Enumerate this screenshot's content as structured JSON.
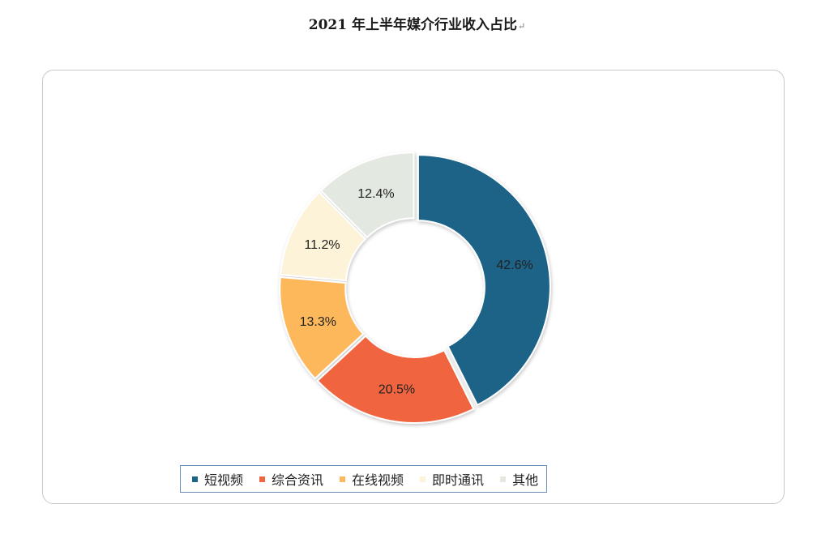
{
  "title": "2021 年上半年媒介行业收入占比",
  "title_mark": "↵",
  "chart_data": {
    "type": "pie",
    "donut": true,
    "title": "2021 年上半年媒介行业收入占比",
    "categories": [
      "短视频",
      "综合资讯",
      "在线视频",
      "即时通讯",
      "其他"
    ],
    "values": [
      42.6,
      20.5,
      13.3,
      11.2,
      12.4
    ],
    "labels": [
      "42.6%",
      "20.5%",
      "13.3%",
      "11.2%",
      "12.4%"
    ],
    "colors": [
      "#1b6387",
      "#f0653f",
      "#feb85c",
      "#fdf3d9",
      "#e3e8e1"
    ],
    "legend_position": "bottom"
  }
}
